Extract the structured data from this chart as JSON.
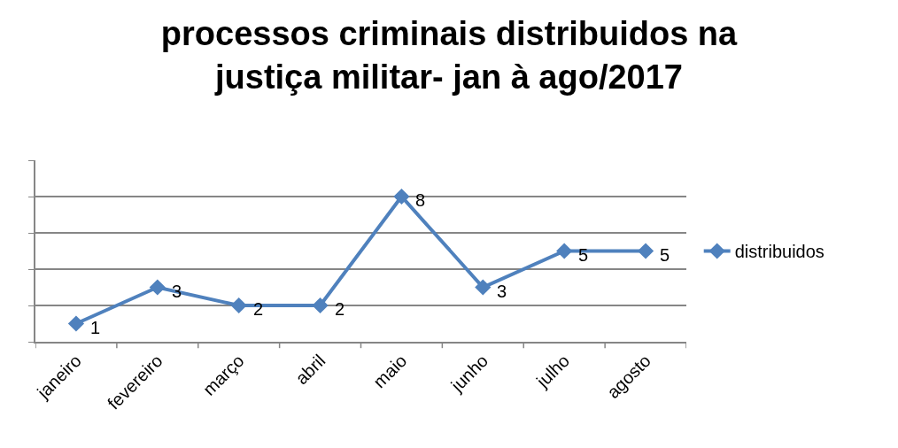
{
  "chart_data": {
    "type": "line",
    "title": "processos criminais distribuidos na\njustiça militar- jan à ago/2017",
    "categories": [
      "janeiro",
      "fevereiro",
      "março",
      "abril",
      "maio",
      "junho",
      "julho",
      "agosto"
    ],
    "series": [
      {
        "name": "distribuidos",
        "color": "#4f81bd",
        "values": [
          1,
          3,
          2,
          2,
          8,
          3,
          5,
          5
        ]
      }
    ],
    "ylim": [
      0,
      10
    ],
    "yticks": [
      {
        "value": 0,
        "label": null
      },
      {
        "value": 2,
        "label": null
      },
      {
        "value": 4,
        "label": null
      },
      {
        "value": 6,
        "label": null
      },
      {
        "value": 8,
        "label": null
      },
      {
        "value": 10,
        "label": null
      }
    ],
    "grid": "y",
    "legend": "right",
    "marker": "diamond",
    "line_style": "solid",
    "data_labels": true,
    "tick_labels": "x"
  }
}
